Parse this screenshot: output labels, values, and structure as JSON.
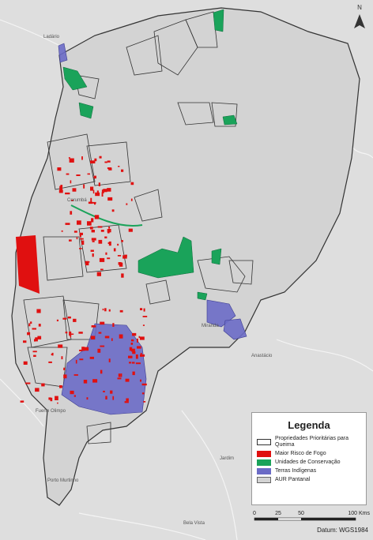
{
  "map": {
    "north": "N",
    "place_labels": [
      "Corumbá",
      "Miranda",
      "Anastácio",
      "Jardim",
      "Bela Vista",
      "Porto Murtinho",
      "Fuerte Olimpo",
      "Ladário"
    ]
  },
  "legend": {
    "title": "Legenda",
    "items": [
      "Propriedades Prioritárias para Queima",
      "Maior Risco de Fogo",
      "Unidades de Conservação",
      "Terras Indígenas",
      "AUR Pantanal"
    ]
  },
  "scale_bar": {
    "labels": [
      "0",
      "25",
      "50",
      "100 Kms"
    ]
  },
  "datum": "Datum: WGS1984"
}
